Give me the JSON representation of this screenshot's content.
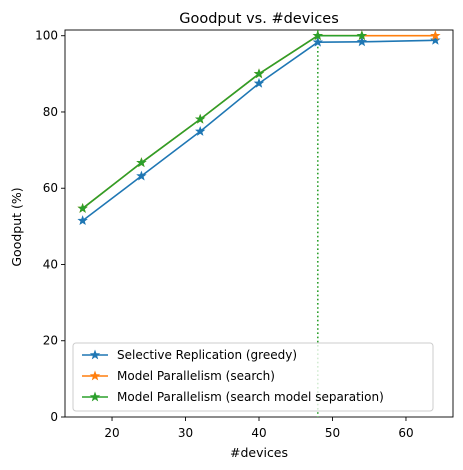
{
  "chart_data": {
    "type": "line",
    "title": "Goodput vs. #devices",
    "xlabel": "#devices",
    "ylabel": "Goodput (%)",
    "xlim": [
      13.6,
      66.4
    ],
    "ylim": [
      0,
      101.5
    ],
    "xticks": [
      20,
      30,
      40,
      50,
      60
    ],
    "yticks": [
      0,
      20,
      40,
      60,
      80,
      100
    ],
    "grid": false,
    "legend_position": "lower-left",
    "marker": "star",
    "series": [
      {
        "name": "Selective Replication (greedy)",
        "color": "#1f77b4",
        "x": [
          16,
          24,
          32,
          40,
          48,
          54,
          64
        ],
        "y": [
          51.5,
          63.2,
          74.9,
          87.5,
          98.3,
          98.4,
          98.8
        ]
      },
      {
        "name": "Model Parallelism (search)",
        "color": "#ff7f0e",
        "x": [
          16,
          24,
          32,
          40,
          48,
          54,
          64
        ],
        "y": [
          54.7,
          66.7,
          78.1,
          90.0,
          100.0,
          100.0,
          100.0
        ]
      },
      {
        "name": "Model Parallelism (search model separation)",
        "color": "#2ca02c",
        "x": [
          16,
          24,
          32,
          40,
          48,
          54
        ],
        "y": [
          54.7,
          66.7,
          78.1,
          90.0,
          100.0,
          100.0
        ]
      }
    ],
    "annotations": [
      {
        "type": "vertical-line",
        "x": 48,
        "style": "dotted",
        "color": "#2ca02c"
      }
    ]
  }
}
